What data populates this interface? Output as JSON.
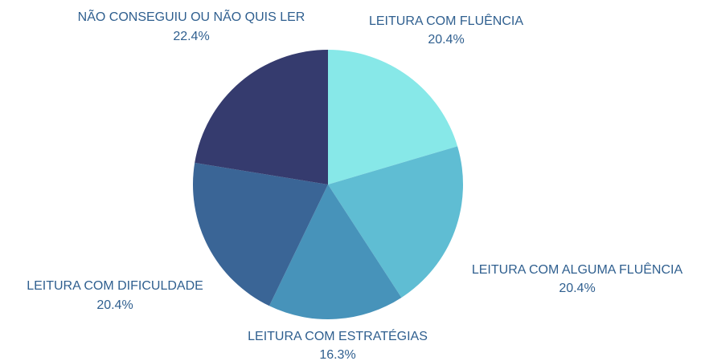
{
  "chart_data": {
    "type": "pie",
    "categories": [
      "LEITURA COM FLUÊNCIA",
      "LEITURA COM ALGUMA FLUÊNCIA",
      "LEITURA COM ESTRATÉGIAS",
      "LEITURA COM DIFICULDADE",
      "NÃO CONSEGUIU OU NÃO QUIS LER"
    ],
    "values": [
      20.4,
      20.4,
      16.3,
      20.4,
      22.4
    ],
    "value_labels": [
      "20.4%",
      "20.4%",
      "16.3%",
      "20.4%",
      "22.4%"
    ],
    "colors": [
      "#87e8e8",
      "#5fbdd3",
      "#4793ba",
      "#3a6596",
      "#353b6e"
    ]
  }
}
